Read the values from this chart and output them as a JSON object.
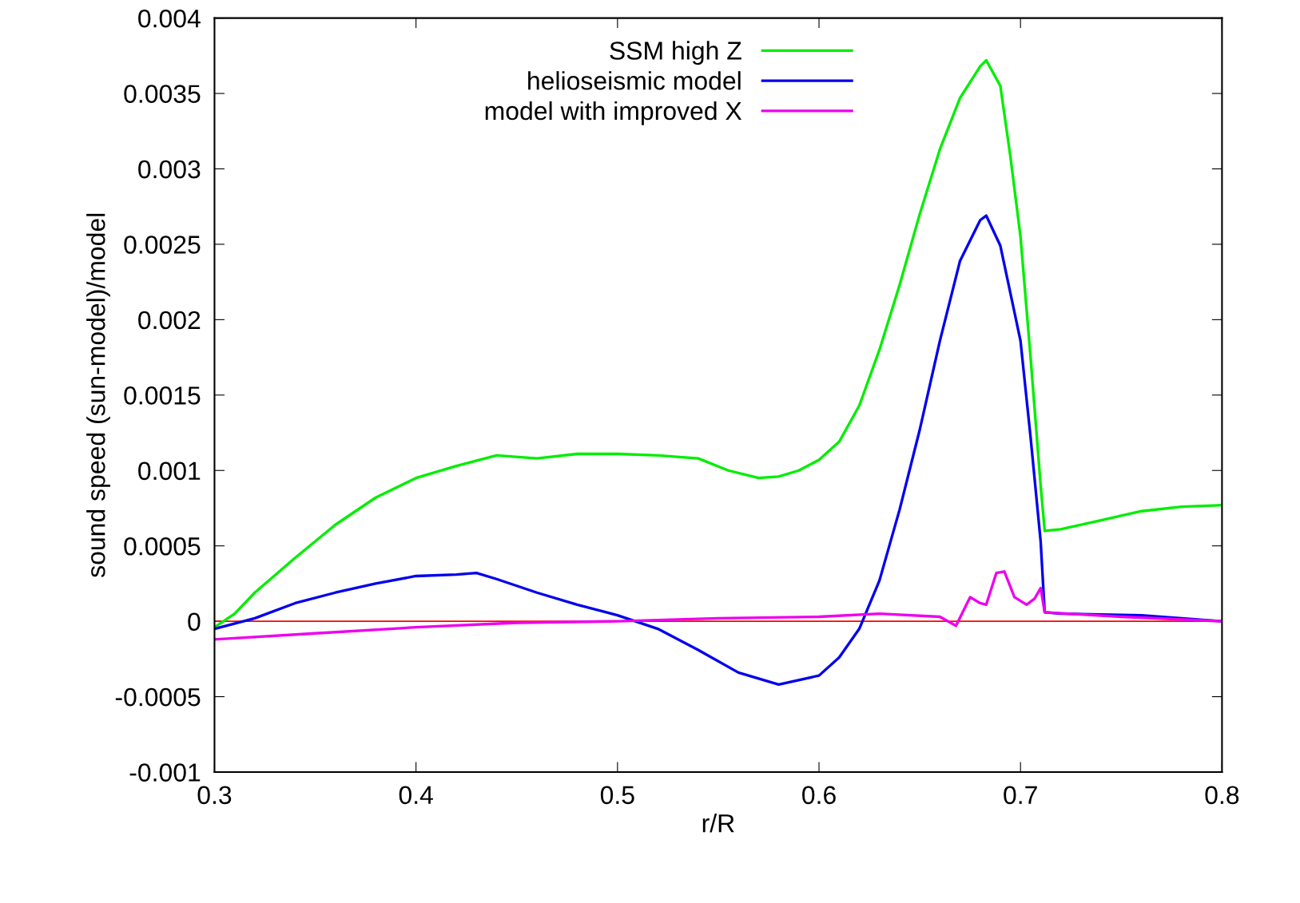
{
  "chart_data": {
    "type": "line",
    "xlabel": "r/R",
    "ylabel": "sound speed (sun-model)/model",
    "xlim": [
      0.3,
      0.8
    ],
    "xticks": [
      0.3,
      0.4,
      0.5,
      0.6,
      0.7,
      0.8
    ],
    "ylim": [
      -0.001,
      0.004
    ],
    "yticks": [
      -0.001,
      -0.0005,
      0,
      0.0005,
      0.001,
      0.0015,
      0.002,
      0.0025,
      0.003,
      0.0035,
      0.004
    ],
    "grid": false,
    "legend": "top",
    "marker": "none",
    "line_style": "solid",
    "ref_lines": [
      {
        "axis": "y",
        "value": 0,
        "color": "#ff0000"
      }
    ],
    "series": [
      {
        "name": "SSM high Z",
        "color": "#00ee00",
        "x": [
          0.3,
          0.31,
          0.32,
          0.34,
          0.36,
          0.38,
          0.4,
          0.42,
          0.44,
          0.46,
          0.48,
          0.5,
          0.52,
          0.54,
          0.555,
          0.57,
          0.58,
          0.59,
          0.6,
          0.61,
          0.62,
          0.63,
          0.64,
          0.65,
          0.66,
          0.67,
          0.68,
          0.683,
          0.69,
          0.695,
          0.7,
          0.705,
          0.71,
          0.712,
          0.72,
          0.74,
          0.76,
          0.78,
          0.8
        ],
        "values": [
          -4e-05,
          5e-05,
          0.00019,
          0.00042,
          0.00064,
          0.00082,
          0.00095,
          0.00103,
          0.0011,
          0.00108,
          0.00111,
          0.00111,
          0.0011,
          0.00108,
          0.001,
          0.00095,
          0.00096,
          0.001,
          0.00107,
          0.00119,
          0.00143,
          0.0018,
          0.00223,
          0.0027,
          0.00313,
          0.00347,
          0.00368,
          0.00372,
          0.00355,
          0.00308,
          0.00255,
          0.00175,
          0.0009,
          0.0006,
          0.00061,
          0.00067,
          0.00073,
          0.00076,
          0.00077
        ]
      },
      {
        "name": "helioseismic model",
        "color": "#0000ee",
        "x": [
          0.3,
          0.32,
          0.34,
          0.36,
          0.38,
          0.4,
          0.42,
          0.43,
          0.44,
          0.46,
          0.48,
          0.5,
          0.52,
          0.54,
          0.56,
          0.58,
          0.6,
          0.61,
          0.62,
          0.63,
          0.64,
          0.65,
          0.66,
          0.67,
          0.68,
          0.683,
          0.69,
          0.7,
          0.705,
          0.71,
          0.712,
          0.72,
          0.76,
          0.8
        ],
        "values": [
          -5e-05,
          2e-05,
          0.00012,
          0.00019,
          0.00025,
          0.0003,
          0.00031,
          0.00032,
          0.00028,
          0.00019,
          0.00011,
          4e-05,
          -5e-05,
          -0.00019,
          -0.00034,
          -0.00042,
          -0.00036,
          -0.00024,
          -5e-05,
          0.00027,
          0.00074,
          0.00127,
          0.00186,
          0.00239,
          0.00266,
          0.00269,
          0.00249,
          0.00186,
          0.00122,
          0.00053,
          6e-05,
          5e-05,
          4e-05,
          0.0
        ]
      },
      {
        "name": "model with improved X",
        "color": "#ee00ee",
        "x": [
          0.3,
          0.35,
          0.4,
          0.45,
          0.5,
          0.55,
          0.6,
          0.63,
          0.66,
          0.668,
          0.675,
          0.68,
          0.683,
          0.688,
          0.692,
          0.697,
          0.703,
          0.707,
          0.71,
          0.712,
          0.75,
          0.8
        ],
        "values": [
          -0.00012,
          -8e-05,
          -4e-05,
          -1e-05,
          0.0,
          2e-05,
          3e-05,
          5e-05,
          3e-05,
          -3e-05,
          0.00016,
          0.00012,
          0.00011,
          0.00032,
          0.00033,
          0.00016,
          0.00011,
          0.00015,
          0.00022,
          6e-05,
          3e-05,
          0.0
        ]
      }
    ]
  }
}
